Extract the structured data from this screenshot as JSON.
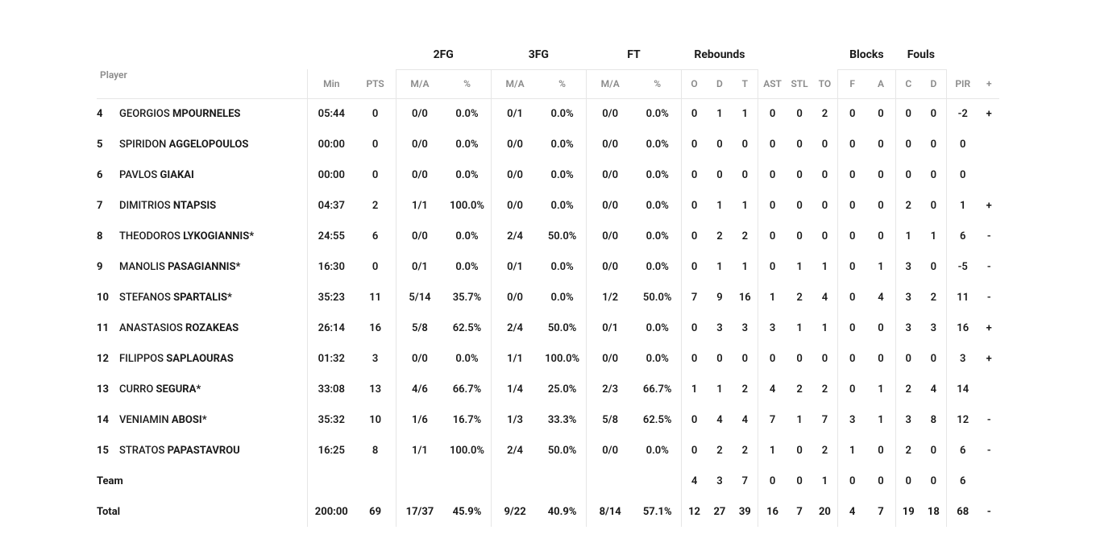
{
  "bands": {
    "fg2": "2FG",
    "fg3": "3FG",
    "ft": "FT",
    "reb": "Rebounds",
    "blk": "Blocks",
    "foul": "Fouls"
  },
  "headers": {
    "player": "Player",
    "min": "Min",
    "pts": "PTS",
    "ma": "M/A",
    "pct": "%",
    "o": "O",
    "d": "D",
    "t": "T",
    "ast": "AST",
    "stl": "STL",
    "to": "TO",
    "f": "F",
    "a": "A",
    "c": "C",
    "fd": "D",
    "pir": "PIR",
    "plus": "+"
  },
  "players": [
    {
      "num": "4",
      "first": "GEORGIOS",
      "last": "MPOURNELES",
      "star": false,
      "min": "05:44",
      "pts": "0",
      "fg2ma": "0/0",
      "fg2p": "0.0%",
      "fg3ma": "0/1",
      "fg3p": "0.0%",
      "ftma": "0/0",
      "ftp": "0.0%",
      "o": "0",
      "d": "1",
      "t": "1",
      "ast": "0",
      "stl": "0",
      "to": "2",
      "bf": "0",
      "ba": "0",
      "fc": "0",
      "fd": "0",
      "pir": "-2",
      "plus": "+"
    },
    {
      "num": "5",
      "first": "SPIRIDON",
      "last": "AGGELOPOULOS",
      "star": false,
      "min": "00:00",
      "pts": "0",
      "fg2ma": "0/0",
      "fg2p": "0.0%",
      "fg3ma": "0/0",
      "fg3p": "0.0%",
      "ftma": "0/0",
      "ftp": "0.0%",
      "o": "0",
      "d": "0",
      "t": "0",
      "ast": "0",
      "stl": "0",
      "to": "0",
      "bf": "0",
      "ba": "0",
      "fc": "0",
      "fd": "0",
      "pir": "0",
      "plus": ""
    },
    {
      "num": "6",
      "first": "PAVLOS",
      "last": "GIAKAI",
      "star": false,
      "min": "00:00",
      "pts": "0",
      "fg2ma": "0/0",
      "fg2p": "0.0%",
      "fg3ma": "0/0",
      "fg3p": "0.0%",
      "ftma": "0/0",
      "ftp": "0.0%",
      "o": "0",
      "d": "0",
      "t": "0",
      "ast": "0",
      "stl": "0",
      "to": "0",
      "bf": "0",
      "ba": "0",
      "fc": "0",
      "fd": "0",
      "pir": "0",
      "plus": ""
    },
    {
      "num": "7",
      "first": "DIMITRIOS",
      "last": "NTAPSIS",
      "star": false,
      "min": "04:37",
      "pts": "2",
      "fg2ma": "1/1",
      "fg2p": "100.0%",
      "fg3ma": "0/0",
      "fg3p": "0.0%",
      "ftma": "0/0",
      "ftp": "0.0%",
      "o": "0",
      "d": "1",
      "t": "1",
      "ast": "0",
      "stl": "0",
      "to": "0",
      "bf": "0",
      "ba": "0",
      "fc": "2",
      "fd": "0",
      "pir": "1",
      "plus": "+"
    },
    {
      "num": "8",
      "first": "THEODOROS",
      "last": "LYKOGIANNIS",
      "star": true,
      "min": "24:55",
      "pts": "6",
      "fg2ma": "0/0",
      "fg2p": "0.0%",
      "fg3ma": "2/4",
      "fg3p": "50.0%",
      "ftma": "0/0",
      "ftp": "0.0%",
      "o": "0",
      "d": "2",
      "t": "2",
      "ast": "0",
      "stl": "0",
      "to": "0",
      "bf": "0",
      "ba": "0",
      "fc": "1",
      "fd": "1",
      "pir": "6",
      "plus": "-"
    },
    {
      "num": "9",
      "first": "MANOLIS",
      "last": "PASAGIANNIS",
      "star": true,
      "min": "16:30",
      "pts": "0",
      "fg2ma": "0/1",
      "fg2p": "0.0%",
      "fg3ma": "0/1",
      "fg3p": "0.0%",
      "ftma": "0/0",
      "ftp": "0.0%",
      "o": "0",
      "d": "1",
      "t": "1",
      "ast": "0",
      "stl": "1",
      "to": "1",
      "bf": "0",
      "ba": "1",
      "fc": "3",
      "fd": "0",
      "pir": "-5",
      "plus": "-"
    },
    {
      "num": "10",
      "first": "STEFANOS",
      "last": "SPARTALIS",
      "star": true,
      "min": "35:23",
      "pts": "11",
      "fg2ma": "5/14",
      "fg2p": "35.7%",
      "fg3ma": "0/0",
      "fg3p": "0.0%",
      "ftma": "1/2",
      "ftp": "50.0%",
      "o": "7",
      "d": "9",
      "t": "16",
      "ast": "1",
      "stl": "2",
      "to": "4",
      "bf": "0",
      "ba": "4",
      "fc": "3",
      "fd": "2",
      "pir": "11",
      "plus": "-"
    },
    {
      "num": "11",
      "first": "ANASTASIOS",
      "last": "ROZAKEAS",
      "star": false,
      "min": "26:14",
      "pts": "16",
      "fg2ma": "5/8",
      "fg2p": "62.5%",
      "fg3ma": "2/4",
      "fg3p": "50.0%",
      "ftma": "0/1",
      "ftp": "0.0%",
      "o": "0",
      "d": "3",
      "t": "3",
      "ast": "3",
      "stl": "1",
      "to": "1",
      "bf": "0",
      "ba": "0",
      "fc": "3",
      "fd": "3",
      "pir": "16",
      "plus": "+"
    },
    {
      "num": "12",
      "first": "FILIPPOS",
      "last": "SAPLAOURAS",
      "star": false,
      "min": "01:32",
      "pts": "3",
      "fg2ma": "0/0",
      "fg2p": "0.0%",
      "fg3ma": "1/1",
      "fg3p": "100.0%",
      "ftma": "0/0",
      "ftp": "0.0%",
      "o": "0",
      "d": "0",
      "t": "0",
      "ast": "0",
      "stl": "0",
      "to": "0",
      "bf": "0",
      "ba": "0",
      "fc": "0",
      "fd": "0",
      "pir": "3",
      "plus": "+"
    },
    {
      "num": "13",
      "first": "CURRO",
      "last": "SEGURA",
      "star": true,
      "min": "33:08",
      "pts": "13",
      "fg2ma": "4/6",
      "fg2p": "66.7%",
      "fg3ma": "1/4",
      "fg3p": "25.0%",
      "ftma": "2/3",
      "ftp": "66.7%",
      "o": "1",
      "d": "1",
      "t": "2",
      "ast": "4",
      "stl": "2",
      "to": "2",
      "bf": "0",
      "ba": "1",
      "fc": "2",
      "fd": "4",
      "pir": "14",
      "plus": ""
    },
    {
      "num": "14",
      "first": "VENIAMIN",
      "last": "ABOSI",
      "star": true,
      "min": "35:32",
      "pts": "10",
      "fg2ma": "1/6",
      "fg2p": "16.7%",
      "fg3ma": "1/3",
      "fg3p": "33.3%",
      "ftma": "5/8",
      "ftp": "62.5%",
      "o": "0",
      "d": "4",
      "t": "4",
      "ast": "7",
      "stl": "1",
      "to": "7",
      "bf": "3",
      "ba": "1",
      "fc": "3",
      "fd": "8",
      "pir": "12",
      "plus": "-"
    },
    {
      "num": "15",
      "first": "STRATOS",
      "last": "PAPASTAVROU",
      "star": false,
      "min": "16:25",
      "pts": "8",
      "fg2ma": "1/1",
      "fg2p": "100.0%",
      "fg3ma": "2/4",
      "fg3p": "50.0%",
      "ftma": "0/0",
      "ftp": "0.0%",
      "o": "0",
      "d": "2",
      "t": "2",
      "ast": "1",
      "stl": "0",
      "to": "2",
      "bf": "1",
      "ba": "0",
      "fc": "2",
      "fd": "0",
      "pir": "6",
      "plus": "-"
    }
  ],
  "team": {
    "label": "Team",
    "min": "",
    "pts": "",
    "fg2ma": "",
    "fg2p": "",
    "fg3ma": "",
    "fg3p": "",
    "ftma": "",
    "ftp": "",
    "o": "4",
    "d": "3",
    "t": "7",
    "ast": "0",
    "stl": "0",
    "to": "1",
    "bf": "0",
    "ba": "0",
    "fc": "0",
    "fd": "0",
    "pir": "6",
    "plus": ""
  },
  "total": {
    "label": "Total",
    "min": "200:00",
    "pts": "69",
    "fg2ma": "17/37",
    "fg2p": "45.9%",
    "fg3ma": "9/22",
    "fg3p": "40.9%",
    "ftma": "8/14",
    "ftp": "57.1%",
    "o": "12",
    "d": "27",
    "t": "39",
    "ast": "16",
    "stl": "7",
    "to": "20",
    "bf": "4",
    "ba": "7",
    "fc": "19",
    "fd": "18",
    "pir": "68",
    "plus": "-"
  }
}
